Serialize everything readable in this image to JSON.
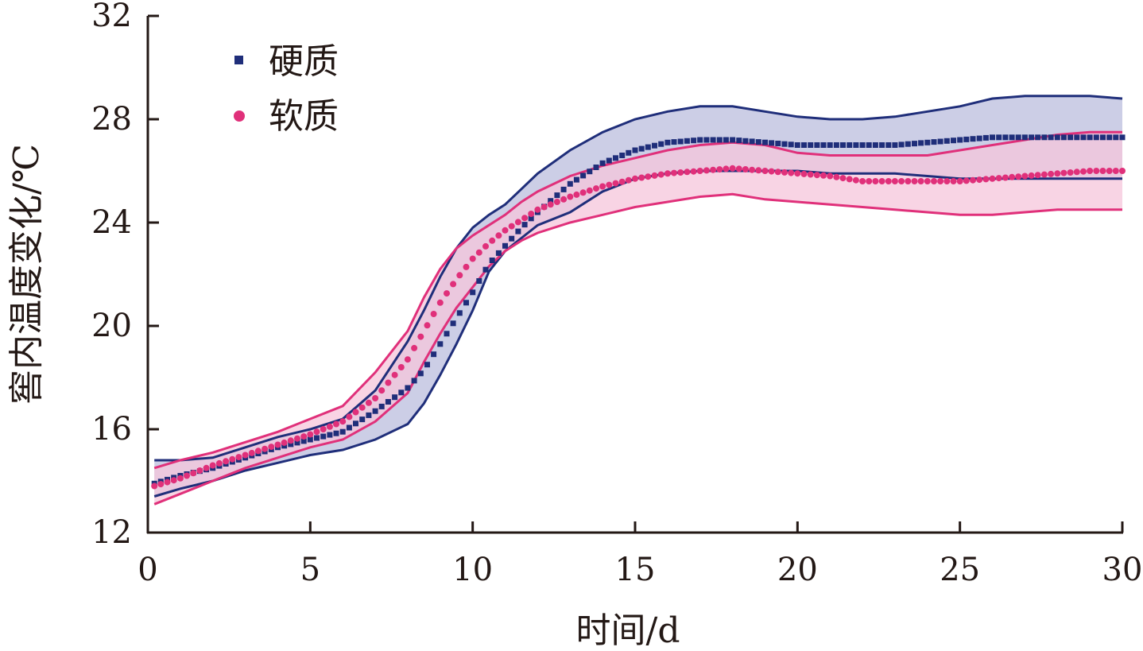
{
  "chart_data": {
    "type": "line",
    "title": "",
    "xlabel": "时间/d",
    "ylabel": "窖内温度变化/℃",
    "xlim": [
      0,
      30
    ],
    "ylim": [
      12,
      32
    ],
    "xticks": [
      0,
      5,
      10,
      15,
      20,
      25,
      30
    ],
    "yticks": [
      12,
      16,
      20,
      24,
      28,
      32
    ],
    "grid": false,
    "legend_position": "top-left",
    "series": [
      {
        "name": "硬质",
        "marker": "square",
        "color": "#1f2e7a",
        "band_fill": "#c9cbe5",
        "x": [
          0.2,
          1,
          2,
          3,
          4,
          5,
          6,
          7,
          8,
          8.5,
          9,
          9.5,
          10,
          10.5,
          11,
          11.5,
          12,
          13,
          14,
          15,
          16,
          17,
          18,
          19,
          20,
          21,
          22,
          23,
          24,
          25,
          26,
          27,
          28,
          29,
          30
        ],
        "mean": [
          13.9,
          14.2,
          14.5,
          14.9,
          15.3,
          15.6,
          15.9,
          16.7,
          17.6,
          18.3,
          19.3,
          20.3,
          21.3,
          22.4,
          23.1,
          23.8,
          24.4,
          25.5,
          26.3,
          26.8,
          27.1,
          27.2,
          27.2,
          27.1,
          27.0,
          27.0,
          27.0,
          27.0,
          27.1,
          27.2,
          27.3,
          27.3,
          27.3,
          27.3,
          27.3
        ],
        "upper": [
          14.8,
          14.8,
          14.9,
          15.3,
          15.7,
          16.0,
          16.4,
          17.5,
          19.4,
          20.6,
          21.9,
          23.0,
          23.8,
          24.3,
          24.7,
          25.3,
          25.9,
          26.8,
          27.5,
          28.0,
          28.3,
          28.5,
          28.5,
          28.3,
          28.1,
          28.0,
          28.0,
          28.1,
          28.3,
          28.5,
          28.8,
          28.9,
          28.9,
          28.9,
          28.8
        ],
        "lower": [
          13.4,
          13.7,
          14.0,
          14.4,
          14.7,
          15.0,
          15.2,
          15.6,
          16.2,
          17.0,
          18.1,
          19.3,
          20.6,
          22.1,
          22.9,
          23.4,
          23.9,
          24.4,
          25.2,
          25.7,
          25.9,
          26.0,
          26.0,
          26.0,
          26.0,
          25.9,
          25.9,
          25.9,
          25.8,
          25.7,
          25.7,
          25.7,
          25.7,
          25.7,
          25.7
        ]
      },
      {
        "name": "软质",
        "marker": "circle",
        "color": "#e0307a",
        "band_fill": "#f5c6db",
        "x": [
          0.2,
          1,
          2,
          3,
          4,
          5,
          6,
          7,
          8,
          8.5,
          9,
          9.5,
          10,
          10.5,
          11,
          11.5,
          12,
          13,
          14,
          15,
          16,
          17,
          18,
          19,
          20,
          21,
          22,
          23,
          24,
          25,
          26,
          27,
          28,
          29,
          30
        ],
        "mean": [
          13.8,
          14.1,
          14.6,
          15.0,
          15.4,
          15.8,
          16.3,
          17.2,
          18.7,
          19.8,
          20.9,
          21.8,
          22.6,
          23.2,
          23.7,
          24.1,
          24.5,
          25.0,
          25.4,
          25.7,
          25.9,
          26.0,
          26.1,
          26.0,
          25.9,
          25.8,
          25.6,
          25.6,
          25.6,
          25.6,
          25.7,
          25.8,
          25.9,
          26.0,
          26.0
        ],
        "upper": [
          14.5,
          14.8,
          15.1,
          15.5,
          15.9,
          16.4,
          16.9,
          18.2,
          19.8,
          21.1,
          22.2,
          23.0,
          23.5,
          23.9,
          24.3,
          24.8,
          25.2,
          25.8,
          26.2,
          26.5,
          26.8,
          27.0,
          27.1,
          27.0,
          26.7,
          26.6,
          26.6,
          26.6,
          26.6,
          26.8,
          27.0,
          27.2,
          27.4,
          27.5,
          27.5
        ],
        "lower": [
          13.1,
          13.5,
          14.0,
          14.5,
          14.9,
          15.3,
          15.6,
          16.3,
          17.4,
          18.6,
          19.7,
          20.7,
          21.5,
          22.3,
          22.9,
          23.3,
          23.6,
          24.0,
          24.3,
          24.6,
          24.8,
          25.0,
          25.1,
          24.9,
          24.8,
          24.7,
          24.6,
          24.5,
          24.4,
          24.3,
          24.3,
          24.4,
          24.5,
          24.5,
          24.5
        ]
      }
    ]
  }
}
